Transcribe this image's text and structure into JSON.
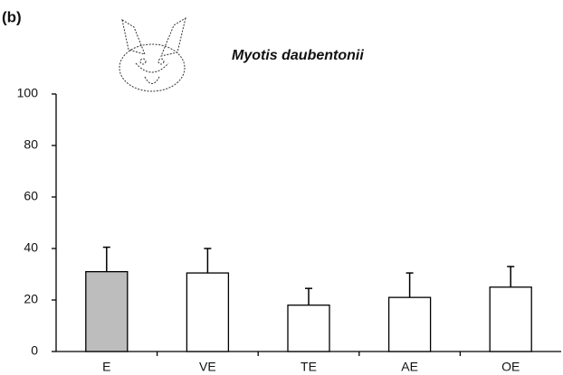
{
  "chart_data": {
    "type": "bar",
    "panel_label": "(b)",
    "title": "Myotis daubentonii",
    "categories": [
      "E",
      "VE",
      "TE",
      "AE",
      "OE"
    ],
    "values": [
      31,
      30.5,
      18,
      21,
      25
    ],
    "errors": [
      9.5,
      9.5,
      6.5,
      9.5,
      8
    ],
    "colors": [
      "#bdbdbd",
      "#ffffff",
      "#ffffff",
      "#ffffff",
      "#ffffff"
    ],
    "ylim": [
      0,
      100
    ],
    "yticks": [
      0,
      20,
      40,
      60,
      80,
      100
    ],
    "grid": false
  }
}
